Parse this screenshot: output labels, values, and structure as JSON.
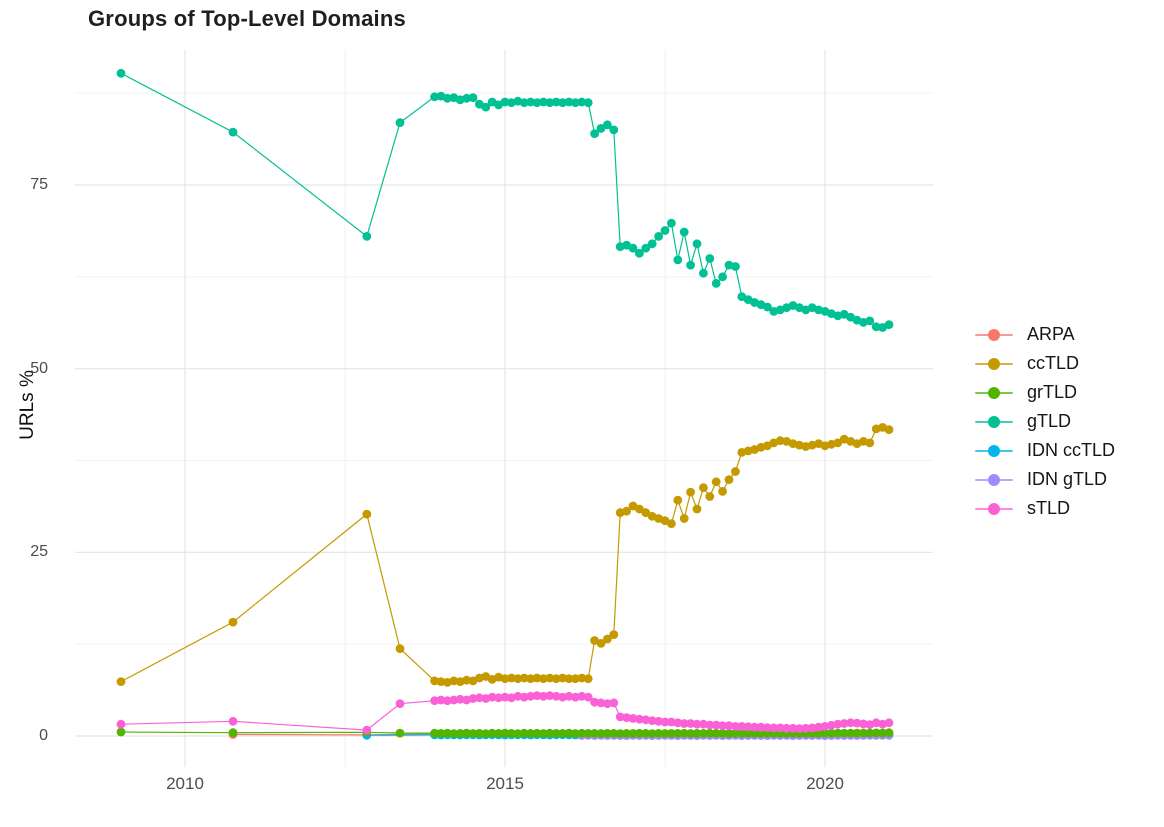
{
  "title": "Groups of Top-Level Domains",
  "y_axis": {
    "label": "URLs %",
    "tick_labels": [
      "0",
      "25",
      "50",
      "75"
    ]
  },
  "x_axis": {
    "tick_labels": [
      "2010",
      "2015",
      "2020"
    ]
  },
  "legend": {
    "position": "right",
    "items": [
      {
        "label": "ARPA",
        "color": "#F8766D"
      },
      {
        "label": "ccTLD",
        "color": "#C49A00"
      },
      {
        "label": "grTLD",
        "color": "#53B400"
      },
      {
        "label": "gTLD",
        "color": "#00C094"
      },
      {
        "label": "IDN ccTLD",
        "color": "#00B6EB"
      },
      {
        "label": "IDN gTLD",
        "color": "#A58AFF"
      },
      {
        "label": "sTLD",
        "color": "#FB61D7"
      }
    ]
  },
  "chart_data": {
    "type": "line",
    "title": "Groups of Top-Level Domains",
    "xlabel": "",
    "ylabel": "URLs %",
    "xlim": [
      2008.3,
      2021.7
    ],
    "ylim": [
      -4,
      93.5
    ],
    "x_ticks": [
      2010,
      2015,
      2020
    ],
    "y_ticks": [
      0,
      25,
      50,
      75
    ],
    "x_minor": [
      2012.5,
      2017.5
    ],
    "y_minor": [
      12.5,
      37.5,
      62.5,
      87.5
    ],
    "grid": "major+minor, light gray on white",
    "legend_position": "right",
    "marker": "filled circle with connecting line",
    "dense_x": {
      "start": 2013.9,
      "step": 0.1,
      "n": 72
    },
    "series": [
      {
        "name": "ARPA",
        "color": "#F8766D",
        "start_index": 0,
        "early": [
          [
            2010.75,
            0.2
          ],
          [
            2012.84,
            0.15
          ]
        ],
        "dense": [
          0.3,
          0.3,
          0.3,
          0.3,
          0.3,
          0.3,
          0.3,
          0.3,
          0.3,
          0.3,
          0.3,
          0.3,
          0.3,
          0.3,
          0.3,
          0.3,
          0.3,
          0.3,
          0.3,
          0.3,
          0.3,
          0.3,
          0.3,
          0.3,
          0.3,
          0.3,
          0.3,
          0.3,
          0.3,
          0.3,
          0.3,
          0.3,
          0.3,
          0.3,
          0.3,
          0.3,
          0.3,
          0.3,
          0.3,
          0.3,
          0.3,
          0.3,
          0.3,
          0.3,
          0.3,
          0.3,
          0.3,
          0.3,
          0.3,
          0.3,
          0.3,
          0.3,
          0.3,
          0.3,
          0.3,
          0.3,
          0.3,
          0.3,
          0.3,
          0.3,
          0.3,
          0.3,
          0.3,
          0.3,
          0.3,
          0.3,
          0.3,
          0.3,
          0.3,
          0.3,
          0.3,
          0.3
        ]
      },
      {
        "name": "IDN ccTLD",
        "color": "#00B6EB",
        "start_index": 0,
        "early": [
          [
            2012.84,
            0.1
          ]
        ],
        "dense": [
          0.15,
          0.14,
          0.16,
          0.15,
          0.14,
          0.15,
          0.16,
          0.14,
          0.15,
          0.16,
          0.15,
          0.14,
          0.15,
          0.16,
          0.15,
          0.14,
          0.16,
          0.15,
          0.14,
          0.15,
          0.16,
          0.15,
          0.14,
          0.15,
          0.16,
          0.15,
          0.14,
          0.15,
          0.16,
          0.14,
          0.15,
          0.16,
          0.15,
          0.14,
          0.15,
          0.14,
          0.15,
          0.16,
          0.15,
          0.14,
          0.15,
          0.16,
          0.15,
          0.14,
          0.15,
          0.16,
          0.15,
          0.14,
          0.15,
          0.14,
          0.15,
          0.14,
          0.15,
          0.16,
          0.15,
          0.14,
          0.15,
          0.14,
          0.15,
          0.14,
          0.13,
          0.14,
          0.13,
          0.14,
          0.13,
          0.12,
          0.13,
          0.12,
          0.13,
          0.12,
          0.12,
          0.12
        ]
      },
      {
        "name": "IDN gTLD",
        "color": "#A58AFF",
        "start_index": 23,
        "early": [],
        "dense": [
          0.07,
          0.08,
          0.07,
          0.08,
          0.07,
          0.08,
          0.07,
          0.06,
          0.08,
          0.07,
          0.08,
          0.06,
          0.07,
          0.08,
          0.07,
          0.06,
          0.08,
          0.07,
          0.06,
          0.08,
          0.07,
          0.08,
          0.06,
          0.07,
          0.08,
          0.06,
          0.07,
          0.08,
          0.07,
          0.06,
          0.08,
          0.07,
          0.08,
          0.06,
          0.07,
          0.08,
          0.07,
          0.08,
          0.06,
          0.07,
          0.08,
          0.07,
          0.08,
          0.07,
          0.08,
          0.09,
          0.08,
          0.09,
          0.1
        ]
      },
      {
        "name": "grTLD",
        "color": "#53B400",
        "start_index": 0,
        "early": [
          [
            2009.0,
            0.55
          ],
          [
            2010.75,
            0.45
          ],
          [
            2012.84,
            0.5
          ],
          [
            2013.36,
            0.4
          ]
        ],
        "dense": [
          0.4,
          0.35,
          0.38,
          0.32,
          0.36,
          0.4,
          0.34,
          0.37,
          0.33,
          0.38,
          0.35,
          0.4,
          0.36,
          0.33,
          0.38,
          0.35,
          0.37,
          0.34,
          0.38,
          0.36,
          0.35,
          0.38,
          0.34,
          0.37,
          0.35,
          0.36,
          0.34,
          0.37,
          0.35,
          0.33,
          0.36,
          0.34,
          0.37,
          0.35,
          0.33,
          0.36,
          0.34,
          0.36,
          0.35,
          0.37,
          0.34,
          0.36,
          0.35,
          0.37,
          0.35,
          0.36,
          0.34,
          0.37,
          0.35,
          0.36,
          0.35,
          0.37,
          0.36,
          0.35,
          0.37,
          0.36,
          0.38,
          0.36,
          0.37,
          0.38,
          0.36,
          0.38,
          0.37,
          0.39,
          0.38,
          0.4,
          0.39,
          0.41,
          0.4,
          0.42,
          0.41,
          0.45
        ]
      },
      {
        "name": "ccTLD",
        "color": "#C49A00",
        "start_index": 0,
        "early": [
          [
            2009.0,
            7.4
          ],
          [
            2010.75,
            15.5
          ],
          [
            2012.84,
            30.2
          ],
          [
            2013.36,
            11.9
          ]
        ],
        "dense": [
          7.5,
          7.4,
          7.3,
          7.5,
          7.4,
          7.6,
          7.5,
          7.9,
          8.1,
          7.7,
          8.0,
          7.8,
          7.9,
          7.8,
          7.9,
          7.8,
          7.9,
          7.8,
          7.9,
          7.8,
          7.9,
          7.8,
          7.8,
          7.9,
          7.8,
          13.0,
          12.6,
          13.2,
          13.8,
          30.4,
          30.6,
          31.3,
          30.9,
          30.4,
          29.9,
          29.6,
          29.3,
          28.9,
          32.1,
          29.6,
          33.2,
          30.9,
          33.8,
          32.6,
          34.6,
          33.3,
          34.9,
          36.0,
          38.6,
          38.8,
          39.0,
          39.3,
          39.5,
          39.9,
          40.2,
          40.1,
          39.8,
          39.6,
          39.4,
          39.6,
          39.8,
          39.5,
          39.7,
          39.9,
          40.4,
          40.1,
          39.8,
          40.1,
          39.9,
          41.8,
          42.0,
          41.7
        ]
      },
      {
        "name": "gTLD",
        "color": "#00C094",
        "start_index": 0,
        "early": [
          [
            2009.0,
            90.2
          ],
          [
            2010.75,
            82.2
          ],
          [
            2012.84,
            68.0
          ],
          [
            2013.36,
            83.5
          ]
        ],
        "dense": [
          87.0,
          87.1,
          86.8,
          86.9,
          86.6,
          86.8,
          86.9,
          86.0,
          85.6,
          86.3,
          85.9,
          86.3,
          86.2,
          86.4,
          86.2,
          86.3,
          86.2,
          86.3,
          86.2,
          86.3,
          86.2,
          86.3,
          86.2,
          86.3,
          86.2,
          82.0,
          82.7,
          83.2,
          82.5,
          66.6,
          66.8,
          66.4,
          65.7,
          66.4,
          67.0,
          68.0,
          68.8,
          69.8,
          64.8,
          68.6,
          64.1,
          67.0,
          63.0,
          65.0,
          61.6,
          62.5,
          64.1,
          63.9,
          59.8,
          59.4,
          59.0,
          58.7,
          58.4,
          57.8,
          58.0,
          58.3,
          58.6,
          58.3,
          58.0,
          58.3,
          58.0,
          57.8,
          57.5,
          57.2,
          57.4,
          57.0,
          56.6,
          56.3,
          56.5,
          55.7,
          55.6,
          56.0
        ]
      },
      {
        "name": "sTLD",
        "color": "#FB61D7",
        "start_index": 0,
        "early": [
          [
            2009.0,
            1.6
          ],
          [
            2010.75,
            2.0
          ],
          [
            2012.84,
            0.8
          ],
          [
            2013.36,
            4.4
          ]
        ],
        "dense": [
          4.8,
          4.9,
          4.8,
          4.9,
          5.0,
          4.9,
          5.1,
          5.2,
          5.1,
          5.3,
          5.2,
          5.3,
          5.2,
          5.4,
          5.3,
          5.4,
          5.5,
          5.4,
          5.5,
          5.4,
          5.3,
          5.4,
          5.3,
          5.4,
          5.3,
          4.6,
          4.5,
          4.4,
          4.5,
          2.6,
          2.5,
          2.4,
          2.3,
          2.2,
          2.1,
          2.0,
          1.9,
          1.9,
          1.8,
          1.7,
          1.7,
          1.6,
          1.6,
          1.5,
          1.5,
          1.4,
          1.4,
          1.3,
          1.3,
          1.25,
          1.2,
          1.2,
          1.15,
          1.1,
          1.1,
          1.05,
          1.05,
          1.0,
          1.05,
          1.1,
          1.2,
          1.3,
          1.45,
          1.6,
          1.7,
          1.8,
          1.75,
          1.65,
          1.55,
          1.8,
          1.6,
          1.8
        ]
      }
    ]
  },
  "style": {
    "grid_major_color": "#E5E5E5",
    "grid_minor_color": "#F2F2F2",
    "background": "#FFFFFF",
    "tick_label_color": "#4d4d4d"
  }
}
